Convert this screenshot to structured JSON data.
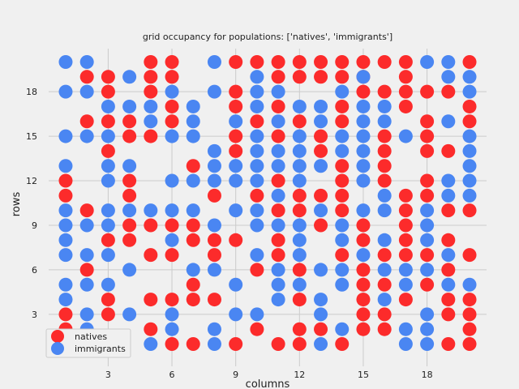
{
  "chart_data": {
    "type": "scatter",
    "title": "grid occupancy for populations: ['natives', 'immigrants']",
    "xlabel": "columns",
    "ylabel": "rows",
    "xlim": [
      0.2,
      20.8
    ],
    "ylim": [
      -0.5,
      20.9
    ],
    "xticks": [
      3,
      6,
      9,
      12,
      15,
      18
    ],
    "yticks": [
      3,
      6,
      9,
      12,
      15,
      18
    ],
    "grid": true,
    "legend_position": "lower-left",
    "series": [
      {
        "name": "natives",
        "color": "#fc2b2b",
        "points": [
          [
            5,
            20
          ],
          [
            6,
            20
          ],
          [
            9,
            20
          ],
          [
            10,
            20
          ],
          [
            11,
            20
          ],
          [
            12,
            20
          ],
          [
            13,
            20
          ],
          [
            14,
            20
          ],
          [
            15,
            20
          ],
          [
            16,
            20
          ],
          [
            17,
            20
          ],
          [
            20,
            20
          ],
          [
            2,
            19
          ],
          [
            3,
            19
          ],
          [
            5,
            19
          ],
          [
            6,
            19
          ],
          [
            11,
            19
          ],
          [
            12,
            19
          ],
          [
            13,
            19
          ],
          [
            14,
            19
          ],
          [
            15,
            19
          ],
          [
            17,
            19
          ],
          [
            3,
            18
          ],
          [
            5,
            18
          ],
          [
            9,
            18
          ],
          [
            15,
            18
          ],
          [
            16,
            18
          ],
          [
            17,
            18
          ],
          [
            18,
            18
          ],
          [
            19,
            18
          ],
          [
            6,
            17
          ],
          [
            9,
            17
          ],
          [
            11,
            17
          ],
          [
            14,
            17
          ],
          [
            17,
            17
          ],
          [
            20,
            17
          ],
          [
            2,
            16
          ],
          [
            3,
            16
          ],
          [
            4,
            16
          ],
          [
            6,
            16
          ],
          [
            10,
            16
          ],
          [
            12,
            16
          ],
          [
            14,
            16
          ],
          [
            18,
            16
          ],
          [
            20,
            16
          ],
          [
            4,
            15
          ],
          [
            5,
            15
          ],
          [
            9,
            15
          ],
          [
            11,
            15
          ],
          [
            13,
            15
          ],
          [
            16,
            15
          ],
          [
            18,
            15
          ],
          [
            3,
            14
          ],
          [
            9,
            14
          ],
          [
            13,
            14
          ],
          [
            16,
            14
          ],
          [
            18,
            14
          ],
          [
            19,
            14
          ],
          [
            7,
            13
          ],
          [
            14,
            13
          ],
          [
            16,
            13
          ],
          [
            1,
            12
          ],
          [
            4,
            12
          ],
          [
            11,
            12
          ],
          [
            14,
            12
          ],
          [
            16,
            12
          ],
          [
            18,
            12
          ],
          [
            1,
            11
          ],
          [
            4,
            11
          ],
          [
            8,
            11
          ],
          [
            10,
            11
          ],
          [
            12,
            11
          ],
          [
            13,
            11
          ],
          [
            14,
            11
          ],
          [
            17,
            11
          ],
          [
            18,
            11
          ],
          [
            2,
            10
          ],
          [
            11,
            10
          ],
          [
            12,
            10
          ],
          [
            14,
            10
          ],
          [
            17,
            10
          ],
          [
            19,
            10
          ],
          [
            20,
            10
          ],
          [
            4,
            9
          ],
          [
            5,
            9
          ],
          [
            6,
            9
          ],
          [
            7,
            9
          ],
          [
            13,
            9
          ],
          [
            15,
            9
          ],
          [
            17,
            9
          ],
          [
            3,
            8
          ],
          [
            4,
            8
          ],
          [
            7,
            8
          ],
          [
            8,
            8
          ],
          [
            9,
            8
          ],
          [
            11,
            8
          ],
          [
            15,
            8
          ],
          [
            17,
            8
          ],
          [
            19,
            8
          ],
          [
            5,
            7
          ],
          [
            6,
            7
          ],
          [
            8,
            7
          ],
          [
            11,
            7
          ],
          [
            14,
            7
          ],
          [
            16,
            7
          ],
          [
            17,
            7
          ],
          [
            18,
            7
          ],
          [
            20,
            7
          ],
          [
            2,
            6
          ],
          [
            10,
            6
          ],
          [
            12,
            6
          ],
          [
            15,
            6
          ],
          [
            19,
            6
          ],
          [
            7,
            5
          ],
          [
            15,
            5
          ],
          [
            16,
            5
          ],
          [
            18,
            5
          ],
          [
            3,
            4
          ],
          [
            5,
            4
          ],
          [
            6,
            4
          ],
          [
            7,
            4
          ],
          [
            8,
            4
          ],
          [
            12,
            4
          ],
          [
            15,
            4
          ],
          [
            17,
            4
          ],
          [
            19,
            4
          ],
          [
            20,
            4
          ],
          [
            1,
            3
          ],
          [
            3,
            3
          ],
          [
            15,
            3
          ],
          [
            16,
            3
          ],
          [
            19,
            3
          ],
          [
            20,
            3
          ],
          [
            1,
            2
          ],
          [
            5,
            2
          ],
          [
            10,
            2
          ],
          [
            12,
            2
          ],
          [
            13,
            2
          ],
          [
            15,
            2
          ],
          [
            16,
            2
          ],
          [
            20,
            2
          ],
          [
            6,
            1
          ],
          [
            7,
            1
          ],
          [
            9,
            1
          ],
          [
            11,
            1
          ],
          [
            12,
            1
          ],
          [
            14,
            1
          ],
          [
            19,
            1
          ],
          [
            20,
            1
          ]
        ]
      },
      {
        "name": "immigrants",
        "color": "#4a86f2",
        "points": [
          [
            1,
            20
          ],
          [
            2,
            20
          ],
          [
            8,
            20
          ],
          [
            18,
            20
          ],
          [
            19,
            20
          ],
          [
            4,
            19
          ],
          [
            10,
            19
          ],
          [
            15,
            19
          ],
          [
            19,
            19
          ],
          [
            20,
            19
          ],
          [
            1,
            18
          ],
          [
            2,
            18
          ],
          [
            6,
            18
          ],
          [
            8,
            18
          ],
          [
            10,
            18
          ],
          [
            11,
            18
          ],
          [
            14,
            18
          ],
          [
            20,
            18
          ],
          [
            3,
            17
          ],
          [
            4,
            17
          ],
          [
            5,
            17
          ],
          [
            7,
            17
          ],
          [
            10,
            17
          ],
          [
            12,
            17
          ],
          [
            13,
            17
          ],
          [
            15,
            17
          ],
          [
            16,
            17
          ],
          [
            5,
            16
          ],
          [
            7,
            16
          ],
          [
            9,
            16
          ],
          [
            11,
            16
          ],
          [
            13,
            16
          ],
          [
            15,
            16
          ],
          [
            16,
            16
          ],
          [
            19,
            16
          ],
          [
            1,
            15
          ],
          [
            2,
            15
          ],
          [
            3,
            15
          ],
          [
            6,
            15
          ],
          [
            7,
            15
          ],
          [
            10,
            15
          ],
          [
            12,
            15
          ],
          [
            14,
            15
          ],
          [
            15,
            15
          ],
          [
            17,
            15
          ],
          [
            20,
            15
          ],
          [
            8,
            14
          ],
          [
            10,
            14
          ],
          [
            11,
            14
          ],
          [
            12,
            14
          ],
          [
            14,
            14
          ],
          [
            15,
            14
          ],
          [
            20,
            14
          ],
          [
            1,
            13
          ],
          [
            3,
            13
          ],
          [
            4,
            13
          ],
          [
            8,
            13
          ],
          [
            9,
            13
          ],
          [
            10,
            13
          ],
          [
            11,
            13
          ],
          [
            12,
            13
          ],
          [
            13,
            13
          ],
          [
            15,
            13
          ],
          [
            20,
            13
          ],
          [
            3,
            12
          ],
          [
            6,
            12
          ],
          [
            7,
            12
          ],
          [
            8,
            12
          ],
          [
            9,
            12
          ],
          [
            10,
            12
          ],
          [
            12,
            12
          ],
          [
            15,
            12
          ],
          [
            19,
            12
          ],
          [
            20,
            12
          ],
          [
            11,
            11
          ],
          [
            16,
            11
          ],
          [
            19,
            11
          ],
          [
            20,
            11
          ],
          [
            1,
            10
          ],
          [
            3,
            10
          ],
          [
            4,
            10
          ],
          [
            5,
            10
          ],
          [
            6,
            10
          ],
          [
            7,
            10
          ],
          [
            9,
            10
          ],
          [
            10,
            10
          ],
          [
            13,
            10
          ],
          [
            15,
            10
          ],
          [
            16,
            10
          ],
          [
            18,
            10
          ],
          [
            1,
            9
          ],
          [
            2,
            9
          ],
          [
            3,
            9
          ],
          [
            8,
            9
          ],
          [
            10,
            9
          ],
          [
            11,
            9
          ],
          [
            12,
            9
          ],
          [
            14,
            9
          ],
          [
            18,
            9
          ],
          [
            1,
            8
          ],
          [
            6,
            8
          ],
          [
            12,
            8
          ],
          [
            14,
            8
          ],
          [
            16,
            8
          ],
          [
            18,
            8
          ],
          [
            1,
            7
          ],
          [
            2,
            7
          ],
          [
            3,
            7
          ],
          [
            10,
            7
          ],
          [
            12,
            7
          ],
          [
            15,
            7
          ],
          [
            19,
            7
          ],
          [
            4,
            6
          ],
          [
            7,
            6
          ],
          [
            8,
            6
          ],
          [
            11,
            6
          ],
          [
            13,
            6
          ],
          [
            14,
            6
          ],
          [
            16,
            6
          ],
          [
            17,
            6
          ],
          [
            18,
            6
          ],
          [
            1,
            5
          ],
          [
            2,
            5
          ],
          [
            3,
            5
          ],
          [
            9,
            5
          ],
          [
            11,
            5
          ],
          [
            12,
            5
          ],
          [
            14,
            5
          ],
          [
            17,
            5
          ],
          [
            19,
            5
          ],
          [
            20,
            5
          ],
          [
            1,
            4
          ],
          [
            11,
            4
          ],
          [
            13,
            4
          ],
          [
            16,
            4
          ],
          [
            2,
            3
          ],
          [
            4,
            3
          ],
          [
            6,
            3
          ],
          [
            9,
            3
          ],
          [
            10,
            3
          ],
          [
            13,
            3
          ],
          [
            18,
            3
          ],
          [
            2,
            2
          ],
          [
            6,
            2
          ],
          [
            8,
            2
          ],
          [
            14,
            2
          ],
          [
            17,
            2
          ],
          [
            18,
            2
          ],
          [
            5,
            1
          ],
          [
            8,
            1
          ],
          [
            13,
            1
          ],
          [
            17,
            1
          ],
          [
            18,
            1
          ]
        ]
      }
    ]
  }
}
